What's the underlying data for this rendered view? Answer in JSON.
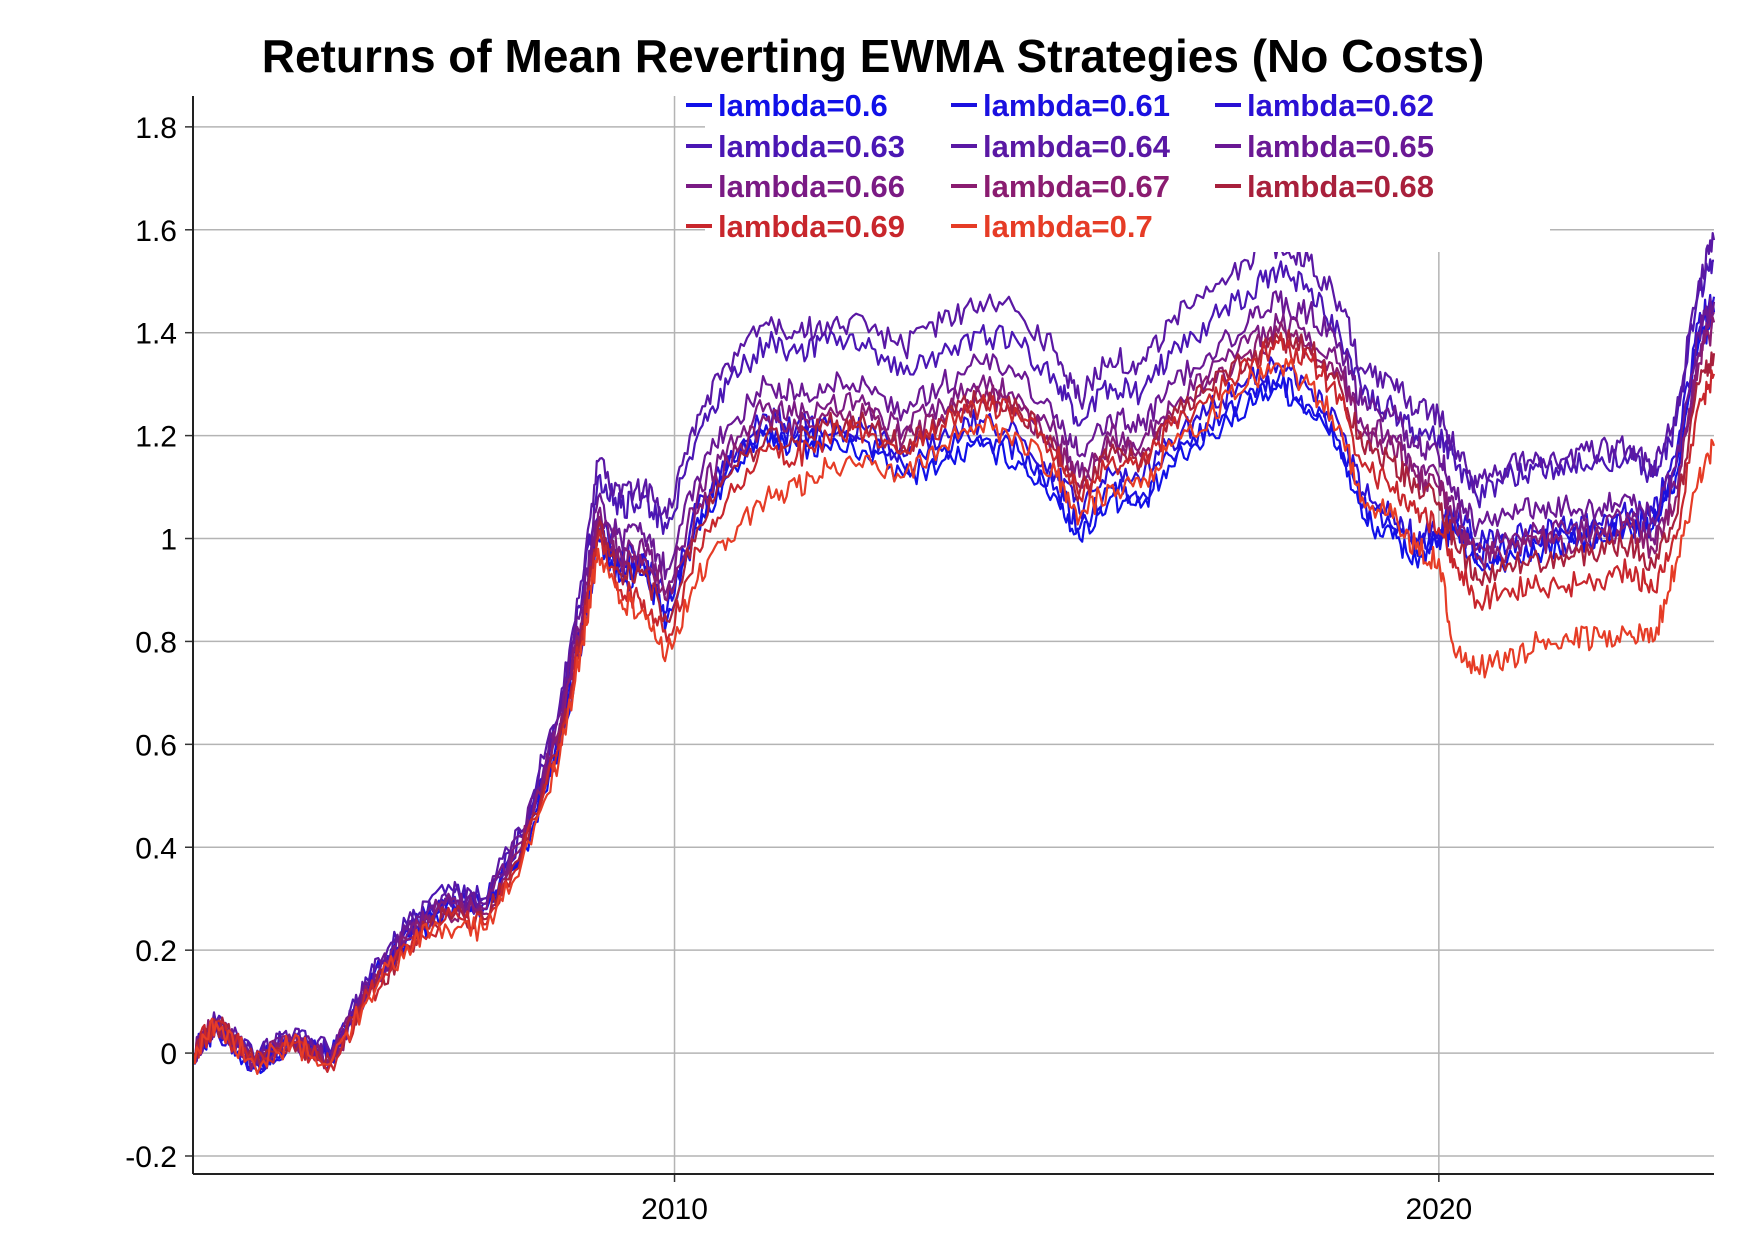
{
  "chart_data": {
    "type": "line",
    "title": "Returns of Mean Reverting EWMA Strategies (No Costs)",
    "xlabel": "",
    "ylabel": "",
    "xlim": [
      2003.7,
      2023.6
    ],
    "ylim": [
      -0.235,
      1.86
    ],
    "y_ticks": [
      -0.2,
      0,
      0.2,
      0.4,
      0.6,
      0.8,
      1,
      1.2,
      1.4,
      1.6,
      1.8
    ],
    "y_tick_labels": [
      "-0.2",
      "0",
      "0.2",
      "0.4",
      "0.6",
      "0.8",
      "1",
      "1.2",
      "1.4",
      "1.6",
      "1.8"
    ],
    "x_ticks": [
      2010,
      2020
    ],
    "x_tick_labels": [
      "2010",
      "2020"
    ],
    "grid": true,
    "legend_position": "top-right",
    "x": [
      2003.7,
      2004.0,
      2004.5,
      2005.0,
      2005.5,
      2006.0,
      2006.5,
      2007.0,
      2007.5,
      2008.0,
      2008.5,
      2008.8,
      2009.0,
      2009.3,
      2009.6,
      2009.9,
      2010.3,
      2010.7,
      2011.2,
      2011.6,
      2012.0,
      2012.5,
      2013.0,
      2013.5,
      2014.0,
      2014.5,
      2015.0,
      2015.3,
      2015.7,
      2016.1,
      2016.5,
      2017.0,
      2017.5,
      2017.9,
      2018.3,
      2018.7,
      2019.0,
      2019.4,
      2019.7,
      2020.0,
      2020.2,
      2020.5,
      2020.9,
      2021.3,
      2021.7,
      2022.1,
      2022.5,
      2022.8,
      2023.1,
      2023.4,
      2023.6
    ],
    "series": [
      {
        "name": "lambda=0.6",
        "color": "#1010e8",
        "values": [
          0.0,
          0.05,
          -0.03,
          0.02,
          -0.01,
          0.12,
          0.22,
          0.28,
          0.28,
          0.38,
          0.6,
          0.8,
          1.0,
          0.92,
          0.93,
          0.84,
          1.02,
          1.12,
          1.2,
          1.18,
          1.18,
          1.17,
          1.12,
          1.15,
          1.18,
          1.15,
          1.08,
          1.0,
          1.08,
          1.06,
          1.14,
          1.2,
          1.26,
          1.3,
          1.25,
          1.18,
          1.04,
          1.0,
          0.96,
          0.99,
          1.02,
          0.95,
          0.96,
          0.97,
          0.99,
          1.0,
          1.02,
          1.02,
          1.12,
          1.38,
          1.42
        ]
      },
      {
        "name": "lambda=0.61",
        "color": "#1a10e0",
        "values": [
          0.0,
          0.05,
          -0.02,
          0.02,
          -0.01,
          0.13,
          0.23,
          0.29,
          0.28,
          0.39,
          0.62,
          0.82,
          1.02,
          0.94,
          0.95,
          0.86,
          1.04,
          1.14,
          1.22,
          1.2,
          1.2,
          1.19,
          1.14,
          1.17,
          1.2,
          1.17,
          1.1,
          1.02,
          1.1,
          1.08,
          1.16,
          1.22,
          1.28,
          1.31,
          1.26,
          1.19,
          1.06,
          1.02,
          0.98,
          1.0,
          1.04,
          0.97,
          0.98,
          0.99,
          1.0,
          1.01,
          1.03,
          1.03,
          1.14,
          1.4,
          1.44
        ]
      },
      {
        "name": "lambda=0.62",
        "color": "#2a10d4",
        "values": [
          0.0,
          0.05,
          -0.02,
          0.02,
          -0.01,
          0.13,
          0.24,
          0.3,
          0.29,
          0.4,
          0.63,
          0.84,
          1.04,
          0.96,
          0.97,
          0.88,
          1.06,
          1.16,
          1.24,
          1.22,
          1.22,
          1.21,
          1.16,
          1.2,
          1.23,
          1.2,
          1.13,
          1.05,
          1.13,
          1.11,
          1.19,
          1.25,
          1.31,
          1.34,
          1.29,
          1.22,
          1.09,
          1.05,
          1.0,
          1.02,
          1.06,
          0.99,
          1.0,
          1.01,
          1.02,
          1.03,
          1.05,
          1.05,
          1.16,
          1.42,
          1.47
        ]
      },
      {
        "name": "lambda=0.63",
        "color": "#4a16b4",
        "values": [
          0.0,
          0.06,
          -0.01,
          0.03,
          0.0,
          0.14,
          0.25,
          0.31,
          0.3,
          0.42,
          0.66,
          0.9,
          1.12,
          1.06,
          1.08,
          1.02,
          1.2,
          1.3,
          1.38,
          1.36,
          1.38,
          1.37,
          1.32,
          1.36,
          1.4,
          1.38,
          1.3,
          1.22,
          1.3,
          1.28,
          1.36,
          1.42,
          1.48,
          1.52,
          1.48,
          1.4,
          1.28,
          1.25,
          1.2,
          1.2,
          1.16,
          1.08,
          1.12,
          1.14,
          1.14,
          1.15,
          1.16,
          1.12,
          1.22,
          1.48,
          1.54
        ]
      },
      {
        "name": "lambda=0.64",
        "color": "#5a18a4",
        "values": [
          0.0,
          0.06,
          -0.01,
          0.03,
          0.0,
          0.14,
          0.25,
          0.31,
          0.3,
          0.43,
          0.68,
          0.92,
          1.15,
          1.08,
          1.1,
          1.04,
          1.24,
          1.34,
          1.42,
          1.4,
          1.42,
          1.42,
          1.37,
          1.42,
          1.46,
          1.44,
          1.36,
          1.27,
          1.35,
          1.34,
          1.42,
          1.48,
          1.54,
          1.57,
          1.54,
          1.46,
          1.33,
          1.3,
          1.25,
          1.24,
          1.18,
          1.1,
          1.14,
          1.16,
          1.16,
          1.17,
          1.18,
          1.14,
          1.24,
          1.5,
          1.58
        ]
      },
      {
        "name": "lambda=0.65",
        "color": "#6a1894",
        "values": [
          0.0,
          0.06,
          -0.02,
          0.03,
          -0.01,
          0.13,
          0.24,
          0.3,
          0.29,
          0.42,
          0.66,
          0.88,
          1.08,
          1.0,
          1.01,
          0.94,
          1.12,
          1.22,
          1.3,
          1.28,
          1.3,
          1.3,
          1.25,
          1.3,
          1.34,
          1.32,
          1.24,
          1.16,
          1.24,
          1.22,
          1.3,
          1.36,
          1.42,
          1.46,
          1.44,
          1.38,
          1.26,
          1.24,
          1.18,
          1.16,
          1.1,
          1.02,
          1.05,
          1.06,
          1.06,
          1.06,
          1.08,
          1.04,
          1.14,
          1.4,
          1.46
        ]
      },
      {
        "name": "lambda=0.66",
        "color": "#7a1a84",
        "values": [
          0.0,
          0.06,
          -0.02,
          0.02,
          -0.01,
          0.12,
          0.23,
          0.29,
          0.28,
          0.41,
          0.64,
          0.86,
          1.05,
          0.97,
          0.98,
          0.9,
          1.08,
          1.18,
          1.26,
          1.24,
          1.26,
          1.26,
          1.21,
          1.26,
          1.3,
          1.28,
          1.2,
          1.12,
          1.2,
          1.18,
          1.26,
          1.32,
          1.38,
          1.42,
          1.4,
          1.34,
          1.22,
          1.2,
          1.14,
          1.12,
          1.06,
          0.98,
          1.0,
          1.01,
          1.01,
          1.02,
          1.04,
          1.0,
          1.1,
          1.36,
          1.44
        ]
      },
      {
        "name": "lambda=0.67",
        "color": "#8a1c70",
        "values": [
          0.0,
          0.06,
          -0.02,
          0.02,
          -0.02,
          0.12,
          0.22,
          0.28,
          0.27,
          0.4,
          0.63,
          0.84,
          1.03,
          0.95,
          0.96,
          0.88,
          1.05,
          1.15,
          1.23,
          1.22,
          1.24,
          1.24,
          1.19,
          1.24,
          1.28,
          1.26,
          1.18,
          1.1,
          1.18,
          1.16,
          1.24,
          1.3,
          1.36,
          1.4,
          1.38,
          1.32,
          1.2,
          1.18,
          1.12,
          1.1,
          1.04,
          0.96,
          0.98,
          0.99,
          0.99,
          1.0,
          1.02,
          0.98,
          1.08,
          1.34,
          1.42
        ]
      },
      {
        "name": "lambda=0.68",
        "color": "#a8203c",
        "values": [
          0.0,
          0.06,
          -0.02,
          0.02,
          -0.02,
          0.11,
          0.21,
          0.27,
          0.26,
          0.39,
          0.62,
          0.83,
          1.02,
          0.93,
          0.93,
          0.84,
          1.02,
          1.12,
          1.2,
          1.19,
          1.22,
          1.22,
          1.18,
          1.23,
          1.27,
          1.25,
          1.17,
          1.09,
          1.17,
          1.15,
          1.23,
          1.29,
          1.35,
          1.39,
          1.37,
          1.3,
          1.18,
          1.15,
          1.1,
          1.07,
          1.0,
          0.92,
          0.95,
          0.96,
          0.96,
          0.97,
          0.99,
          0.95,
          1.04,
          1.3,
          1.36
        ]
      },
      {
        "name": "lambda=0.69",
        "color": "#c8262c",
        "values": [
          0.0,
          0.06,
          -0.02,
          0.02,
          -0.02,
          0.11,
          0.21,
          0.26,
          0.25,
          0.38,
          0.6,
          0.82,
          1.0,
          0.9,
          0.88,
          0.8,
          0.98,
          1.08,
          1.17,
          1.16,
          1.2,
          1.21,
          1.17,
          1.22,
          1.26,
          1.24,
          1.16,
          1.08,
          1.15,
          1.14,
          1.22,
          1.28,
          1.34,
          1.38,
          1.35,
          1.28,
          1.14,
          1.1,
          1.05,
          1.02,
          0.96,
          0.88,
          0.9,
          0.91,
          0.91,
          0.92,
          0.94,
          0.9,
          1.0,
          1.26,
          1.32
        ]
      },
      {
        "name": "lambda=0.7",
        "color": "#e63c26",
        "values": [
          0.0,
          0.06,
          -0.02,
          0.02,
          -0.02,
          0.11,
          0.21,
          0.25,
          0.24,
          0.37,
          0.58,
          0.8,
          0.98,
          0.88,
          0.86,
          0.78,
          0.92,
          1.0,
          1.08,
          1.1,
          1.14,
          1.16,
          1.12,
          1.18,
          1.22,
          1.2,
          1.12,
          1.04,
          1.1,
          1.1,
          1.18,
          1.24,
          1.3,
          1.34,
          1.3,
          1.22,
          1.08,
          1.04,
          0.98,
          0.96,
          0.78,
          0.75,
          0.76,
          0.8,
          0.8,
          0.81,
          0.82,
          0.8,
          0.95,
          1.12,
          1.18
        ]
      }
    ]
  }
}
